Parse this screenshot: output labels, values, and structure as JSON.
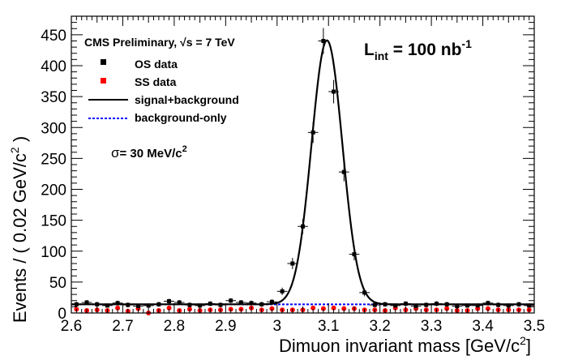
{
  "chart_data": {
    "type": "scatter",
    "xlabel": "Dimuon invariant mass [GeV/c",
    "xlabel_sup": "2",
    "xlabel_end": "]",
    "ylabel": "Events / ( 0.02 GeV/c",
    "ylabel_sup": "2",
    "ylabel_end": " )",
    "xlim": [
      2.6,
      3.5
    ],
    "ylim": [
      0,
      480
    ],
    "x_ticks": [
      "2.6",
      "2.7",
      "2.8",
      "2.9",
      "3",
      "3.1",
      "3.2",
      "3.3",
      "3.4",
      "3.5"
    ],
    "y_ticks": [
      "0",
      "50",
      "100",
      "150",
      "200",
      "250",
      "300",
      "350",
      "400",
      "450"
    ],
    "legend_position": "top-left",
    "annotations": {
      "header": "CMS Preliminary, ",
      "header_sqrt": "√s = 7 TeV",
      "lumi_main": "L",
      "lumi_sub": "int",
      "lumi_value": " = 100 nb",
      "lumi_sup": "-1",
      "sigma_symbol": "σ",
      "sigma_text": "= 30 MeV/c",
      "sigma_sup": "2"
    },
    "series": [
      {
        "name": "OS data",
        "color": "#000000",
        "marker": "square",
        "x": [
          2.61,
          2.63,
          2.65,
          2.67,
          2.69,
          2.71,
          2.73,
          2.75,
          2.77,
          2.79,
          2.81,
          2.83,
          2.85,
          2.87,
          2.89,
          2.91,
          2.93,
          2.95,
          2.97,
          2.99,
          3.01,
          3.03,
          3.05,
          3.07,
          3.09,
          3.11,
          3.13,
          3.15,
          3.17,
          3.19,
          3.21,
          3.23,
          3.25,
          3.27,
          3.29,
          3.31,
          3.33,
          3.35,
          3.37,
          3.39,
          3.41,
          3.43,
          3.45,
          3.47,
          3.49
        ],
        "y": [
          14,
          17,
          14,
          12,
          16,
          13,
          11,
          12,
          14,
          19,
          17,
          13,
          12,
          15,
          13,
          20,
          17,
          16,
          14,
          18,
          35,
          80,
          140,
          292,
          440,
          358,
          228,
          95,
          33,
          13,
          14,
          12,
          15,
          11,
          13,
          15,
          14,
          11,
          12,
          12,
          16,
          13,
          12,
          14,
          12
        ],
        "err": [
          4,
          4,
          4,
          3,
          4,
          4,
          3,
          3,
          4,
          4,
          4,
          4,
          3,
          4,
          4,
          4,
          4,
          4,
          4,
          4,
          6,
          9,
          12,
          17,
          21,
          19,
          15,
          10,
          6,
          4,
          4,
          3,
          4,
          3,
          4,
          4,
          4,
          3,
          3,
          3,
          4,
          4,
          3,
          4,
          3
        ]
      },
      {
        "name": "SS data",
        "color": "#ff0000",
        "marker": "circle",
        "x": [
          2.61,
          2.63,
          2.65,
          2.67,
          2.69,
          2.71,
          2.73,
          2.75,
          2.77,
          2.79,
          2.81,
          2.83,
          2.85,
          2.87,
          2.89,
          2.91,
          2.93,
          2.95,
          2.97,
          2.99,
          3.01,
          3.03,
          3.05,
          3.07,
          3.09,
          3.11,
          3.13,
          3.15,
          3.17,
          3.19,
          3.21,
          3.23,
          3.25,
          3.27,
          3.29,
          3.31,
          3.33,
          3.35,
          3.37,
          3.39,
          3.41,
          3.43,
          3.45,
          3.47,
          3.49
        ],
        "y": [
          6,
          4,
          5,
          4,
          8,
          3,
          7,
          0,
          4,
          8,
          4,
          6,
          4,
          5,
          5,
          6,
          6,
          8,
          5,
          7,
          5,
          5,
          5,
          8,
          7,
          8,
          7,
          7,
          5,
          5,
          4,
          8,
          5,
          7,
          5,
          5,
          7,
          4,
          4,
          7,
          7,
          5,
          5,
          5,
          5
        ]
      },
      {
        "name": "signal+background",
        "color": "#000000",
        "line_style": "solid",
        "peak_mass": 3.097,
        "sigma": 0.03,
        "peak_height": 427,
        "background": 14
      },
      {
        "name": "background-only",
        "color": "#0000ff",
        "line_style": "dashed",
        "background": 14
      }
    ]
  }
}
